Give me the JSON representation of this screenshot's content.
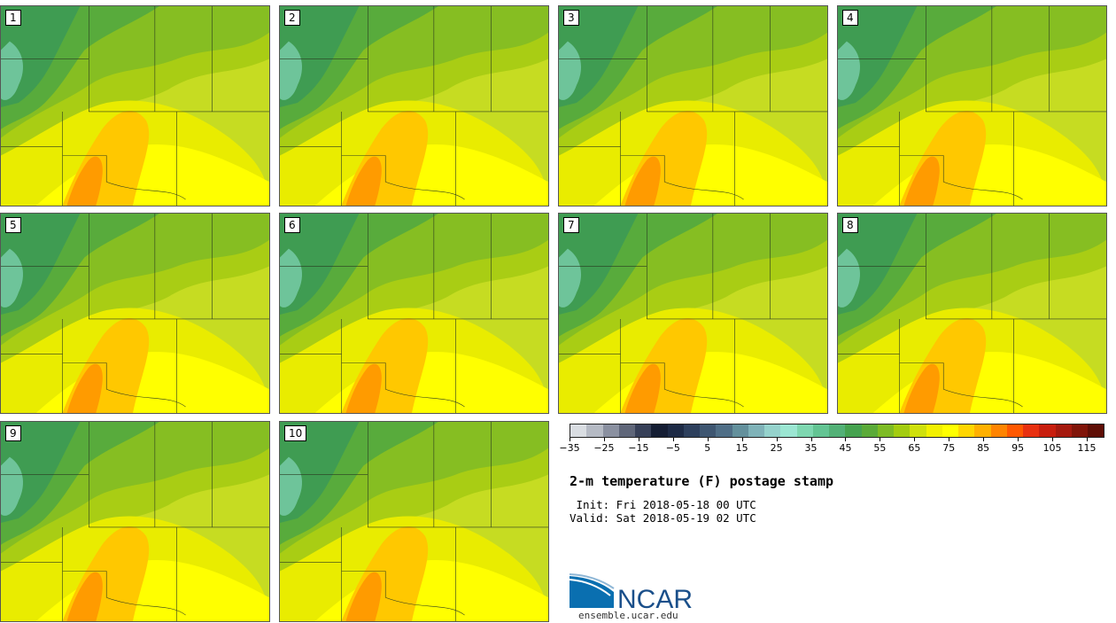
{
  "panels": [
    {
      "label": "1"
    },
    {
      "label": "2"
    },
    {
      "label": "3"
    },
    {
      "label": "4"
    },
    {
      "label": "5"
    },
    {
      "label": "6"
    },
    {
      "label": "7"
    },
    {
      "label": "8"
    },
    {
      "label": "9"
    },
    {
      "label": "10"
    }
  ],
  "colorbar": {
    "colors": [
      "#d9dde2",
      "#b5bac4",
      "#8a90a0",
      "#5f6679",
      "#374058",
      "#141d33",
      "#1d2a45",
      "#2d3f5c",
      "#3e5671",
      "#4f6e86",
      "#63909c",
      "#7fb2b8",
      "#95d2cc",
      "#9be6d2",
      "#7ed7b0",
      "#63c493",
      "#52b076",
      "#45a24f",
      "#5aaa38",
      "#7dbb24",
      "#a3cc10",
      "#cfe00c",
      "#f2f000",
      "#ffff00",
      "#ffd500",
      "#ffb000",
      "#ff8400",
      "#ff5800",
      "#e83010",
      "#c81e0e",
      "#a5190e",
      "#801409",
      "#5e0e06"
    ],
    "tick_labels": [
      "−35",
      "−25",
      "−15",
      "−5",
      "5",
      "15",
      "25",
      "35",
      "45",
      "55",
      "65",
      "75",
      "85",
      "95",
      "105",
      "115"
    ],
    "range": [
      -35,
      125
    ]
  },
  "title": "2-m temperature (F) postage stamp",
  "init": " Init: Fri 2018-05-18 00 UTC",
  "valid": "Valid: Sat 2018-05-19 02 UTC",
  "logo": {
    "text": "NCAR",
    "url": "ensemble.ucar.edu"
  }
}
